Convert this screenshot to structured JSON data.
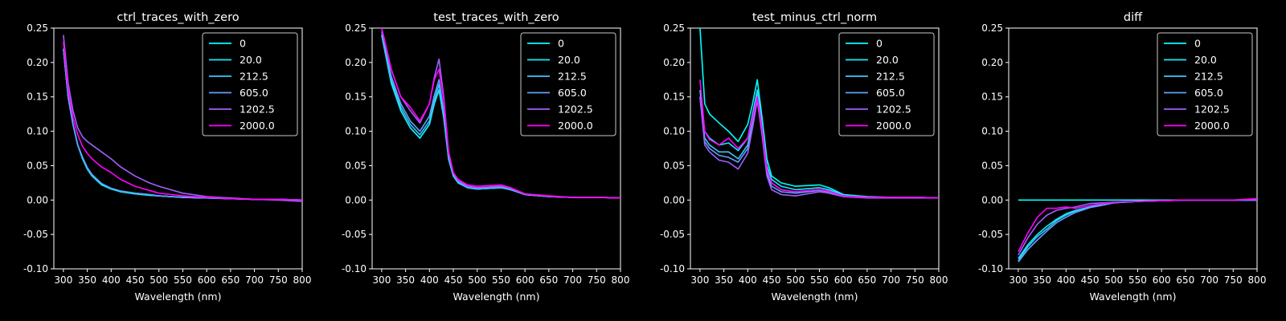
{
  "figure": {
    "background": "#000000",
    "foreground": "#ffffff"
  },
  "legend": [
    {
      "label": "0",
      "color": "#00ffff"
    },
    {
      "label": "20.0",
      "color": "#14ebff"
    },
    {
      "label": "212.5",
      "color": "#38c7ff"
    },
    {
      "label": "605.0",
      "color": "#60a0ff"
    },
    {
      "label": "1202.5",
      "color": "#a05fff"
    },
    {
      "label": "2000.0",
      "color": "#ff00ff"
    }
  ],
  "chart_data": [
    {
      "type": "line",
      "title": "ctrl_traces_with_zero",
      "xlabel": "Wavelength (nm)",
      "ylabel": "",
      "xlim": [
        280,
        800
      ],
      "ylim": [
        -0.1,
        0.25
      ],
      "xticks": [
        300,
        350,
        400,
        450,
        500,
        550,
        600,
        650,
        700,
        750,
        800
      ],
      "yticks": [
        -0.1,
        -0.05,
        0.0,
        0.05,
        0.1,
        0.15,
        0.2,
        0.25
      ],
      "legend_position": "top-right",
      "grid": false,
      "x": [
        300,
        310,
        320,
        330,
        340,
        350,
        360,
        380,
        400,
        420,
        450,
        480,
        500,
        550,
        600,
        650,
        700,
        750,
        800
      ],
      "series": [
        {
          "name": "0",
          "values": [
            0.22,
            0.15,
            0.11,
            0.08,
            0.06,
            0.045,
            0.035,
            0.022,
            0.016,
            0.012,
            0.009,
            0.007,
            0.006,
            0.004,
            0.003,
            0.002,
            0.001,
            0.001,
            0.0
          ]
        },
        {
          "name": "20.0",
          "values": [
            0.22,
            0.15,
            0.11,
            0.08,
            0.06,
            0.045,
            0.035,
            0.023,
            0.017,
            0.012,
            0.009,
            0.007,
            0.006,
            0.004,
            0.003,
            0.002,
            0.001,
            0.001,
            0.0
          ]
        },
        {
          "name": "212.5",
          "values": [
            0.22,
            0.15,
            0.11,
            0.08,
            0.062,
            0.047,
            0.037,
            0.024,
            0.017,
            0.013,
            0.01,
            0.008,
            0.006,
            0.004,
            0.003,
            0.002,
            0.001,
            0.001,
            0.0
          ]
        },
        {
          "name": "605.0",
          "values": [
            0.22,
            0.15,
            0.11,
            0.08,
            0.062,
            0.047,
            0.037,
            0.024,
            0.017,
            0.013,
            0.01,
            0.008,
            0.006,
            0.004,
            0.003,
            0.002,
            0.001,
            0.001,
            0.0
          ]
        },
        {
          "name": "1202.5",
          "values": [
            0.24,
            0.17,
            0.13,
            0.105,
            0.092,
            0.085,
            0.08,
            0.07,
            0.06,
            0.048,
            0.035,
            0.025,
            0.02,
            0.01,
            0.005,
            0.003,
            0.001,
            0.0,
            -0.002
          ]
        },
        {
          "name": "2000.0",
          "values": [
            0.23,
            0.16,
            0.12,
            0.095,
            0.078,
            0.068,
            0.06,
            0.048,
            0.04,
            0.03,
            0.02,
            0.014,
            0.01,
            0.006,
            0.004,
            0.002,
            0.001,
            0.001,
            0.0
          ]
        }
      ]
    },
    {
      "type": "line",
      "title": "test_traces_with_zero",
      "xlabel": "Wavelength (nm)",
      "ylabel": "",
      "xlim": [
        280,
        800
      ],
      "ylim": [
        -0.1,
        0.25
      ],
      "xticks": [
        300,
        350,
        400,
        450,
        500,
        550,
        600,
        650,
        700,
        750,
        800
      ],
      "yticks": [
        -0.1,
        -0.05,
        0.0,
        0.05,
        0.1,
        0.15,
        0.2,
        0.25
      ],
      "legend_position": "top-right",
      "grid": false,
      "x": [
        300,
        320,
        340,
        360,
        380,
        400,
        410,
        420,
        430,
        440,
        450,
        460,
        480,
        500,
        550,
        570,
        600,
        650,
        700,
        750,
        800
      ],
      "series": [
        {
          "name": "0",
          "values": [
            0.24,
            0.17,
            0.13,
            0.105,
            0.09,
            0.11,
            0.14,
            0.16,
            0.12,
            0.06,
            0.035,
            0.025,
            0.018,
            0.016,
            0.018,
            0.015,
            0.008,
            0.005,
            0.004,
            0.004,
            0.003
          ]
        },
        {
          "name": "20.0",
          "values": [
            0.24,
            0.17,
            0.13,
            0.105,
            0.09,
            0.11,
            0.14,
            0.16,
            0.12,
            0.06,
            0.035,
            0.025,
            0.018,
            0.016,
            0.018,
            0.015,
            0.008,
            0.005,
            0.004,
            0.004,
            0.003
          ]
        },
        {
          "name": "212.5",
          "values": [
            0.24,
            0.175,
            0.135,
            0.11,
            0.095,
            0.115,
            0.145,
            0.168,
            0.125,
            0.062,
            0.036,
            0.026,
            0.018,
            0.016,
            0.018,
            0.015,
            0.008,
            0.005,
            0.004,
            0.004,
            0.003
          ]
        },
        {
          "name": "605.0",
          "values": [
            0.245,
            0.18,
            0.14,
            0.115,
            0.1,
            0.122,
            0.152,
            0.175,
            0.13,
            0.065,
            0.037,
            0.027,
            0.019,
            0.017,
            0.019,
            0.016,
            0.008,
            0.005,
            0.004,
            0.004,
            0.003
          ]
        },
        {
          "name": "1202.5",
          "values": [
            0.25,
            0.19,
            0.15,
            0.13,
            0.112,
            0.14,
            0.178,
            0.205,
            0.15,
            0.07,
            0.04,
            0.028,
            0.02,
            0.018,
            0.02,
            0.017,
            0.009,
            0.005,
            0.004,
            0.004,
            0.003
          ]
        },
        {
          "name": "2000.0",
          "values": [
            0.25,
            0.19,
            0.15,
            0.135,
            0.115,
            0.14,
            0.175,
            0.19,
            0.145,
            0.07,
            0.04,
            0.03,
            0.022,
            0.02,
            0.022,
            0.018,
            0.009,
            0.006,
            0.004,
            0.004,
            0.003
          ]
        }
      ]
    },
    {
      "type": "line",
      "title": "test_minus_ctrl_norm",
      "xlabel": "Wavelength (nm)",
      "ylabel": "",
      "xlim": [
        280,
        800
      ],
      "ylim": [
        -0.1,
        0.25
      ],
      "xticks": [
        300,
        350,
        400,
        450,
        500,
        550,
        600,
        650,
        700,
        750,
        800
      ],
      "yticks": [
        -0.1,
        -0.05,
        0.0,
        0.05,
        0.1,
        0.15,
        0.2,
        0.25
      ],
      "legend_position": "top-right",
      "grid": false,
      "x": [
        300,
        310,
        320,
        340,
        360,
        380,
        400,
        410,
        420,
        430,
        440,
        450,
        470,
        500,
        550,
        570,
        600,
        650,
        700,
        750,
        800
      ],
      "series": [
        {
          "name": "0",
          "values": [
            0.25,
            0.14,
            0.125,
            0.112,
            0.1,
            0.085,
            0.11,
            0.14,
            0.175,
            0.12,
            0.06,
            0.035,
            0.025,
            0.02,
            0.022,
            0.018,
            0.008,
            0.005,
            0.004,
            0.004,
            0.003
          ]
        },
        {
          "name": "20.0",
          "values": [
            0.16,
            0.1,
            0.09,
            0.08,
            0.083,
            0.072,
            0.09,
            0.125,
            0.16,
            0.11,
            0.05,
            0.03,
            0.02,
            0.015,
            0.018,
            0.015,
            0.007,
            0.004,
            0.004,
            0.004,
            0.003
          ]
        },
        {
          "name": "212.5",
          "values": [
            0.15,
            0.09,
            0.08,
            0.07,
            0.07,
            0.06,
            0.08,
            0.115,
            0.155,
            0.105,
            0.045,
            0.025,
            0.015,
            0.012,
            0.015,
            0.013,
            0.006,
            0.004,
            0.004,
            0.004,
            0.003
          ]
        },
        {
          "name": "605.0",
          "values": [
            0.15,
            0.085,
            0.075,
            0.065,
            0.062,
            0.055,
            0.075,
            0.11,
            0.15,
            0.1,
            0.04,
            0.02,
            0.012,
            0.01,
            0.014,
            0.012,
            0.006,
            0.004,
            0.004,
            0.004,
            0.003
          ]
        },
        {
          "name": "1202.5",
          "values": [
            0.15,
            0.08,
            0.07,
            0.058,
            0.055,
            0.045,
            0.068,
            0.105,
            0.145,
            0.095,
            0.035,
            0.015,
            0.008,
            0.006,
            0.012,
            0.01,
            0.005,
            0.003,
            0.003,
            0.003,
            0.003
          ]
        },
        {
          "name": "2000.0",
          "values": [
            0.175,
            0.1,
            0.088,
            0.08,
            0.09,
            0.075,
            0.09,
            0.12,
            0.15,
            0.105,
            0.045,
            0.025,
            0.015,
            0.012,
            0.015,
            0.013,
            0.006,
            0.004,
            0.004,
            0.004,
            0.003
          ]
        }
      ]
    },
    {
      "type": "line",
      "title": "diff",
      "xlabel": "Wavelength (nm)",
      "ylabel": "",
      "xlim": [
        280,
        800
      ],
      "ylim": [
        -0.1,
        0.25
      ],
      "xticks": [
        300,
        350,
        400,
        450,
        500,
        550,
        600,
        650,
        700,
        750,
        800
      ],
      "yticks": [
        -0.1,
        -0.05,
        0.0,
        0.05,
        0.1,
        0.15,
        0.2,
        0.25
      ],
      "legend_position": "top-right",
      "grid": false,
      "x": [
        300,
        320,
        340,
        360,
        380,
        400,
        420,
        450,
        480,
        500,
        550,
        600,
        650,
        700,
        750,
        800
      ],
      "series": [
        {
          "name": "0",
          "values": [
            0,
            0,
            0,
            0,
            0,
            0,
            0,
            0,
            0,
            0,
            0,
            0,
            0,
            0,
            0,
            0
          ]
        },
        {
          "name": "20.0",
          "values": [
            -0.085,
            -0.065,
            -0.05,
            -0.038,
            -0.028,
            -0.02,
            -0.015,
            -0.01,
            -0.006,
            -0.004,
            -0.002,
            -0.001,
            0.0,
            0.0,
            0.0,
            0.0
          ]
        },
        {
          "name": "212.5",
          "values": [
            -0.088,
            -0.068,
            -0.053,
            -0.042,
            -0.03,
            -0.022,
            -0.016,
            -0.01,
            -0.006,
            -0.004,
            -0.002,
            -0.001,
            0.0,
            0.0,
            0.0,
            0.0
          ]
        },
        {
          "name": "605.0",
          "values": [
            -0.09,
            -0.072,
            -0.058,
            -0.045,
            -0.033,
            -0.025,
            -0.018,
            -0.011,
            -0.007,
            -0.004,
            -0.002,
            -0.001,
            0.0,
            0.0,
            0.0,
            0.0
          ]
        },
        {
          "name": "1202.5",
          "values": [
            -0.08,
            -0.055,
            -0.035,
            -0.022,
            -0.015,
            -0.012,
            -0.01,
            -0.005,
            -0.004,
            -0.003,
            -0.002,
            -0.001,
            0.0,
            0.0,
            0.0,
            0.0
          ]
        },
        {
          "name": "2000.0",
          "values": [
            -0.075,
            -0.048,
            -0.025,
            -0.012,
            -0.012,
            -0.01,
            -0.012,
            -0.008,
            -0.005,
            -0.003,
            -0.002,
            -0.001,
            0.0,
            0.0,
            0.0,
            0.002
          ]
        }
      ]
    }
  ]
}
